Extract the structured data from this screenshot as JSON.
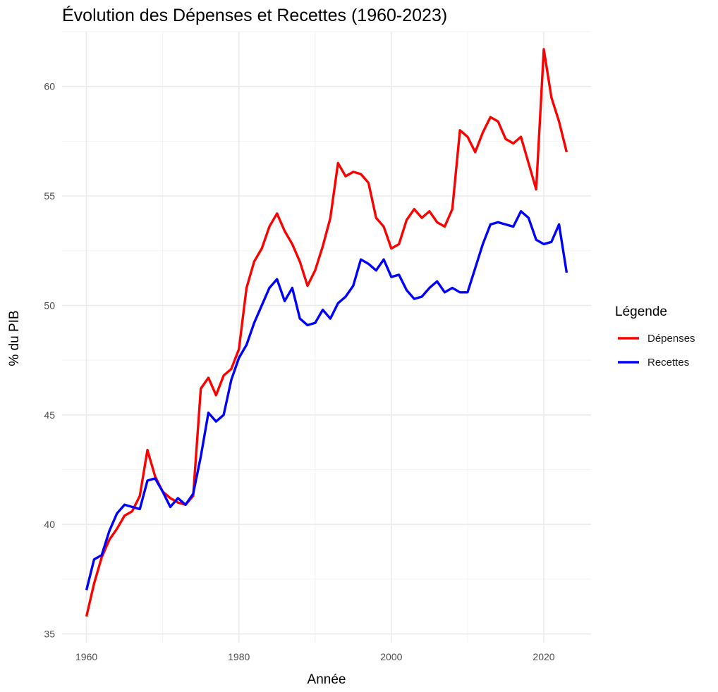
{
  "chart_data": {
    "type": "line",
    "title": "Évolution des Dépenses et Recettes (1960-2023)",
    "xlabel": "Année",
    "ylabel": "% du PIB",
    "xlim": [
      1956.8,
      2026.2
    ],
    "ylim": [
      34.6,
      62.5
    ],
    "xticks": [
      1960,
      1980,
      2000,
      2020
    ],
    "yticks": [
      35,
      40,
      45,
      50,
      55,
      60
    ],
    "grid": true,
    "legend": {
      "title": "Légende",
      "placement": "right"
    },
    "x": [
      1960,
      1961,
      1962,
      1963,
      1964,
      1965,
      1966,
      1967,
      1968,
      1969,
      1970,
      1971,
      1972,
      1973,
      1974,
      1975,
      1976,
      1977,
      1978,
      1979,
      1980,
      1981,
      1982,
      1983,
      1984,
      1985,
      1986,
      1987,
      1988,
      1989,
      1990,
      1991,
      1992,
      1993,
      1994,
      1995,
      1996,
      1997,
      1998,
      1999,
      2000,
      2001,
      2002,
      2003,
      2004,
      2005,
      2006,
      2007,
      2008,
      2009,
      2010,
      2011,
      2012,
      2013,
      2014,
      2015,
      2016,
      2017,
      2018,
      2019,
      2020,
      2021,
      2022,
      2023
    ],
    "series": [
      {
        "name": "Dépenses",
        "color": "#ff0000",
        "values": [
          35.8,
          37.3,
          38.5,
          39.3,
          39.8,
          40.4,
          40.6,
          41.3,
          43.4,
          42.2,
          41.5,
          41.2,
          41.0,
          40.9,
          41.3,
          46.2,
          46.7,
          45.9,
          46.8,
          47.1,
          48.0,
          50.8,
          52.0,
          52.6,
          53.6,
          54.2,
          53.4,
          52.8,
          52.0,
          50.9,
          51.6,
          52.7,
          54.0,
          56.5,
          55.9,
          56.1,
          56.0,
          55.6,
          54.0,
          53.6,
          52.6,
          52.8,
          53.9,
          54.4,
          54.0,
          54.3,
          53.8,
          53.6,
          54.4,
          58.0,
          57.7,
          57.0,
          57.9,
          58.6,
          58.4,
          57.6,
          57.4,
          57.7,
          56.5,
          55.3,
          61.7,
          59.5,
          58.4,
          57.0
        ]
      },
      {
        "name": "Recettes",
        "color": "#0000ff",
        "values": [
          37.0,
          38.4,
          38.6,
          39.7,
          40.5,
          40.9,
          40.8,
          40.7,
          42.0,
          42.1,
          41.5,
          40.8,
          41.2,
          40.9,
          41.4,
          43.1,
          45.1,
          44.7,
          45.0,
          46.6,
          47.6,
          48.2,
          49.2,
          50.0,
          50.8,
          51.2,
          50.2,
          50.8,
          49.4,
          49.1,
          49.2,
          49.8,
          49.4,
          50.1,
          50.4,
          50.9,
          52.1,
          51.9,
          51.6,
          52.1,
          51.3,
          51.4,
          50.7,
          50.3,
          50.4,
          50.8,
          51.1,
          50.6,
          50.8,
          50.6,
          50.6,
          51.7,
          52.8,
          53.7,
          53.8,
          53.7,
          53.6,
          54.3,
          54.0,
          53.0,
          52.8,
          52.9,
          53.7,
          51.5
        ]
      }
    ]
  }
}
